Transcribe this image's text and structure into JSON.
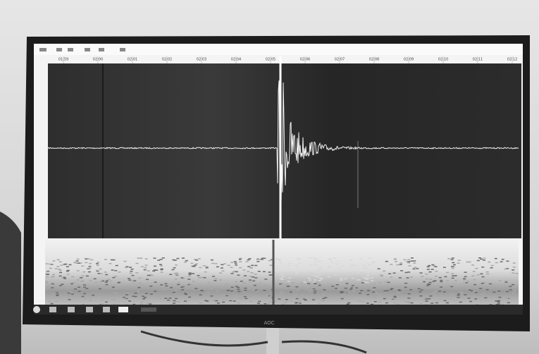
{
  "monitor": {
    "brand": "AOC"
  },
  "screen": {
    "time_labels": [
      "01:59",
      "02:00",
      "02:01",
      "02:02",
      "02:03",
      "02:04",
      "02:05",
      "02:06",
      "02:07",
      "02:08",
      "02:09",
      "02:10",
      "02:11",
      "02:12"
    ]
  }
}
